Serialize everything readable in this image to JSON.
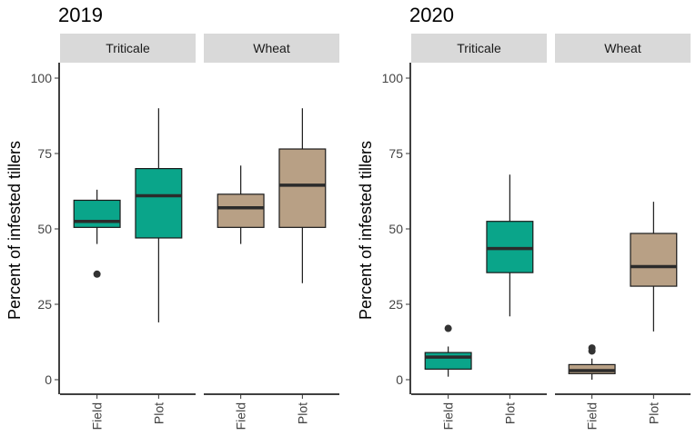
{
  "chart_data": [
    {
      "type": "boxplot",
      "title": "2019",
      "ylabel": "Percent of infested tillers",
      "xlabel": "",
      "ylim": [
        -5,
        105
      ],
      "yticks": [
        0,
        25,
        50,
        75,
        100
      ],
      "grid": false,
      "facets": [
        {
          "label": "Triticale",
          "boxes": [
            {
              "category": "Field",
              "min": 45,
              "q1": 50.5,
              "median": 52.5,
              "q3": 59.5,
              "max": 63,
              "outliers": [
                35
              ],
              "color": "#0aa58a"
            },
            {
              "category": "Plot",
              "min": 19,
              "q1": 47,
              "median": 61,
              "q3": 70,
              "max": 90,
              "outliers": [],
              "color": "#0aa58a"
            }
          ]
        },
        {
          "label": "Wheat",
          "boxes": [
            {
              "category": "Field",
              "min": 45,
              "q1": 50.5,
              "median": 57,
              "q3": 61.5,
              "max": 71,
              "outliers": [],
              "color": "#b8a085"
            },
            {
              "category": "Plot",
              "min": 32,
              "q1": 50.5,
              "median": 64.5,
              "q3": 76.5,
              "max": 90,
              "outliers": [],
              "color": "#b8a085"
            }
          ]
        }
      ]
    },
    {
      "type": "boxplot",
      "title": "2020",
      "ylabel": "Percent of infested tillers",
      "xlabel": "",
      "ylim": [
        -5,
        105
      ],
      "yticks": [
        0,
        25,
        50,
        75,
        100
      ],
      "grid": false,
      "facets": [
        {
          "label": "Triticale",
          "boxes": [
            {
              "category": "Field",
              "min": 1,
              "q1": 3.5,
              "median": 7.5,
              "q3": 9,
              "max": 11,
              "outliers": [
                17
              ],
              "color": "#0aa58a"
            },
            {
              "category": "Plot",
              "min": 21,
              "q1": 35.5,
              "median": 43.5,
              "q3": 52.5,
              "max": 68,
              "outliers": [],
              "color": "#0aa58a"
            }
          ]
        },
        {
          "label": "Wheat",
          "boxes": [
            {
              "category": "Field",
              "min": 0,
              "q1": 2,
              "median": 3,
              "q3": 5,
              "max": 7,
              "outliers": [
                9.5,
                10.5
              ],
              "color": "#b8a085"
            },
            {
              "category": "Plot",
              "min": 16,
              "q1": 31,
              "median": 37.5,
              "q3": 48.5,
              "max": 59,
              "outliers": [],
              "color": "#b8a085"
            }
          ]
        }
      ]
    }
  ]
}
